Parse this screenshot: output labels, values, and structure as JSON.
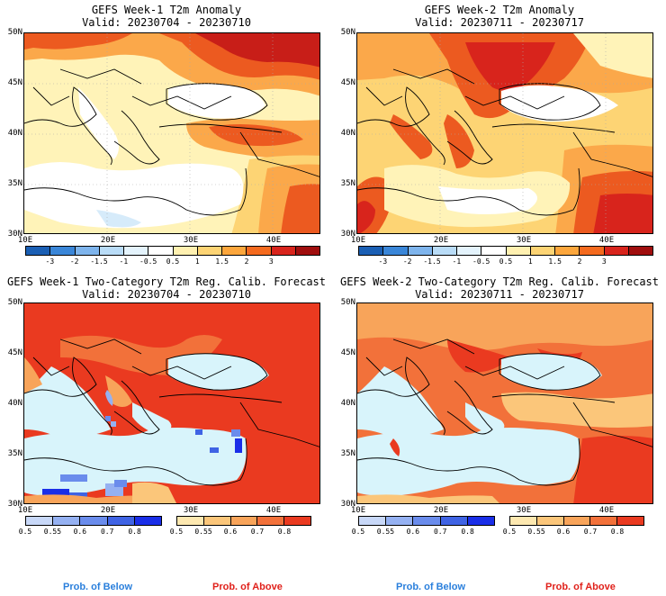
{
  "panels": [
    {
      "title": "GEFS Week-1 T2m Anomaly",
      "valid": "Valid: 20230704 - 20230710"
    },
    {
      "title": "GEFS Week-2 T2m Anomaly",
      "valid": "Valid: 20230711 - 20230717"
    },
    {
      "title": "GEFS Week-1 Two-Category T2m Reg. Calib. Forecast",
      "valid": "Valid: 20230704 - 20230710"
    },
    {
      "title": "GEFS Week-2 Two-Category T2m Reg. Calib. Forecast",
      "valid": "Valid: 20230711 - 20230717"
    }
  ],
  "lat_labels": [
    "50N",
    "45N",
    "40N",
    "35N",
    "30N"
  ],
  "lon_labels": [
    "10E",
    "20E",
    "30E",
    "40E"
  ],
  "anomaly_colorbar": {
    "labels": [
      "-3",
      "-2",
      "-1.5",
      "-1",
      "-0.5",
      "0.5",
      "1",
      "1.5",
      "2",
      "3"
    ],
    "colors": [
      "#1a5fb4",
      "#3a86d8",
      "#7eb4ec",
      "#b9dcf7",
      "#e4f3fc",
      "#ffffff",
      "#fff0b0",
      "#fdd474",
      "#fca63c",
      "#f46a1e",
      "#d8241c",
      "#a00e0e"
    ]
  },
  "below_colorbar": {
    "labels": [
      "0.5",
      "0.55",
      "0.6",
      "0.7",
      "0.8"
    ],
    "colors": [
      "#c8d8f8",
      "#95b1f2",
      "#6a8cec",
      "#3f63e4",
      "#1a2ee8"
    ]
  },
  "above_colorbar": {
    "labels": [
      "0.5",
      "0.55",
      "0.6",
      "0.7",
      "0.8"
    ],
    "colors": [
      "#fde8b0",
      "#fbc67a",
      "#f8a45a",
      "#f2713a",
      "#ea3a20"
    ]
  },
  "prob_below": "Prob. of Below",
  "prob_above": "Prob. of Above",
  "colors": {
    "sea_prob": "#d8f4fb",
    "prob_below_label": "#2a7fdc",
    "prob_above_label": "#e0201a"
  }
}
